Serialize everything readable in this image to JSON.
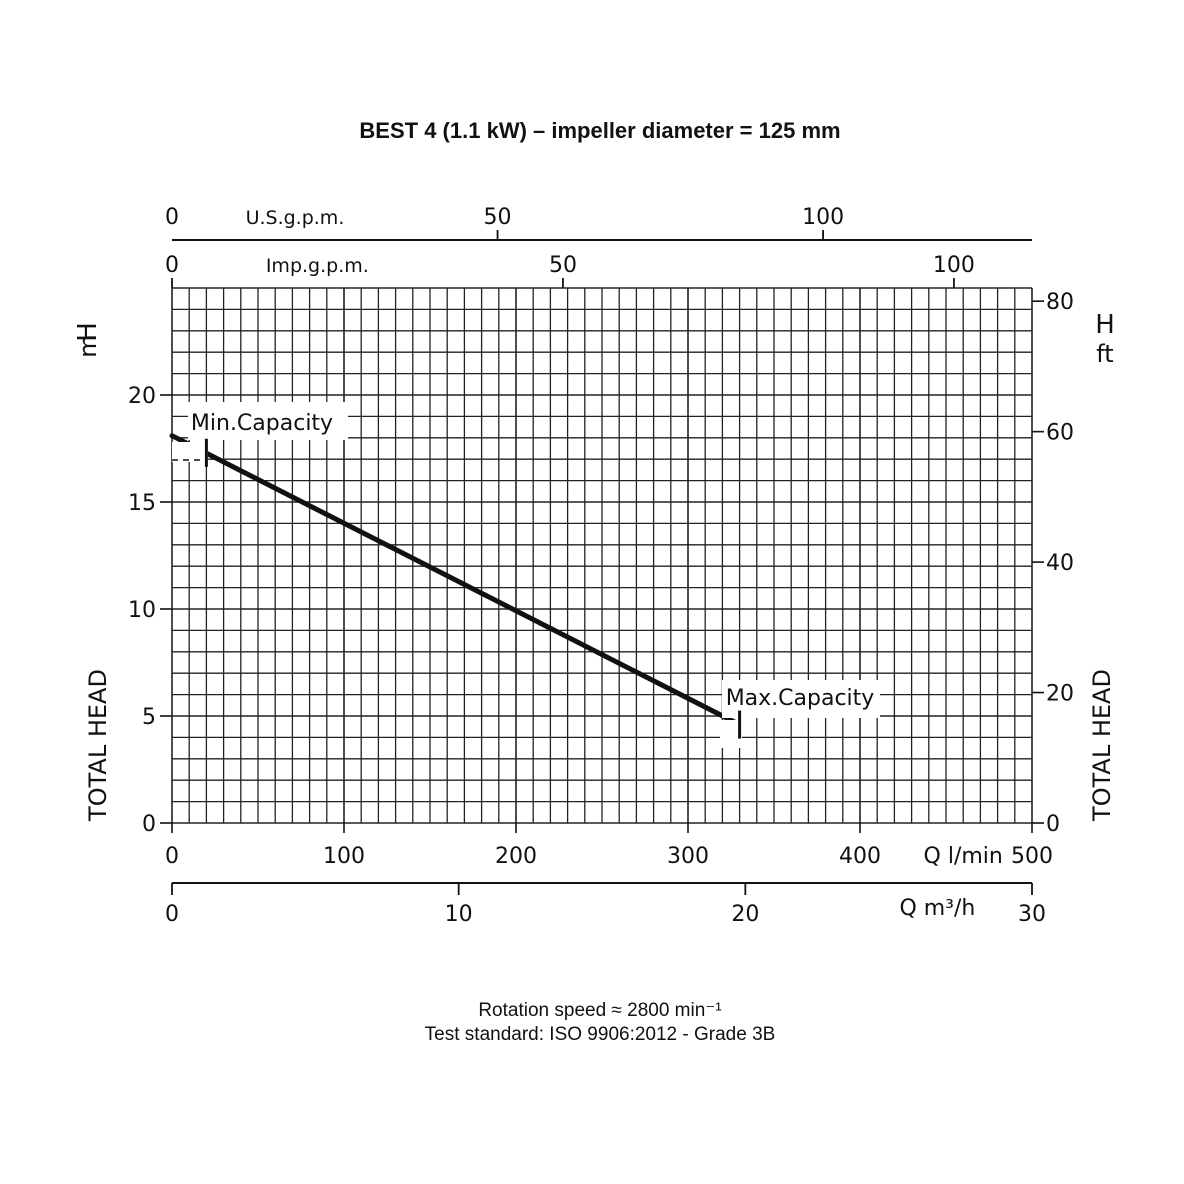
{
  "chart_data": {
    "type": "line",
    "title": "BEST 4 (1.1 kW) – impeller diameter = 125 mm",
    "footer": {
      "rotation": "Rotation speed ≈ 2800 min⁻¹",
      "standard": "Test standard: ISO 9906:2012 - Grade 3B"
    },
    "x_axis": {
      "xlabel_unit": "Q l/min",
      "xlim": [
        0,
        500
      ],
      "ticks": [
        0,
        100,
        200,
        300,
        400,
        500
      ],
      "tick_labels": [
        "0",
        "100",
        "200",
        "300",
        "400",
        "500"
      ]
    },
    "x_axis_m3h": {
      "label": "Q m³/h",
      "xlim": [
        0,
        30
      ],
      "ticks": [
        0,
        10,
        20,
        30
      ],
      "tick_labels": [
        "0",
        "10",
        "20",
        "30"
      ]
    },
    "x_axis_usgpm": {
      "label": "U.S.g.p.m.",
      "ticks": [
        0,
        50,
        100
      ],
      "tick_labels": [
        "0",
        "50",
        "100"
      ]
    },
    "x_axis_impgpm": {
      "label": "Imp.g.p.m.",
      "ticks": [
        0,
        50,
        100
      ],
      "tick_labels": [
        "0",
        "50",
        "100"
      ]
    },
    "y_axis_left": {
      "ylabel": "TOTAL HEAD",
      "unit_h": "H",
      "unit_m": "m",
      "ylim": [
        0,
        25
      ],
      "ticks": [
        0,
        5,
        10,
        15,
        20
      ],
      "tick_labels": [
        "0",
        "5",
        "10",
        "15",
        "20"
      ]
    },
    "y_axis_right": {
      "ylabel": "TOTAL HEAD",
      "unit_h": "H",
      "unit_ft": "ft",
      "ticks": [
        0,
        20,
        40,
        60,
        80
      ],
      "tick_labels": [
        "0",
        "20",
        "40",
        "60",
        "80"
      ]
    },
    "grid": true,
    "series": [
      {
        "x": [
          0,
          330
        ],
        "y": [
          18.1,
          4.6
        ]
      }
    ],
    "annotations": {
      "min_capacity": {
        "text": "Min.Capacity",
        "x": 20,
        "y": 17.3
      },
      "max_capacity": {
        "text": "Max.Capacity",
        "x": 330,
        "y": 4.6
      }
    },
    "line_color": "#111111",
    "grid_color": "#222222"
  }
}
